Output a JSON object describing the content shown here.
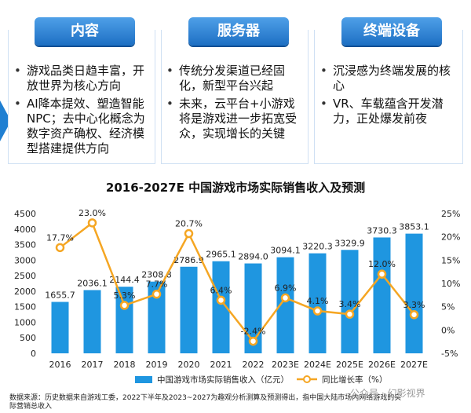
{
  "panels": [
    {
      "title": "内容",
      "bullets": [
        "游戏品类日趋丰富，开放世界为核心方向",
        "AI降本提效、塑造智能NPC；去中心化概念为数字资产确权、经济模型搭建提供方向"
      ]
    },
    {
      "title": "服务器",
      "bullets": [
        "传统分发渠道已经固化，新型平台兴起",
        "未来，云平台+小游戏将是游戏进一步拓宽受众，实现增长的关键"
      ]
    },
    {
      "title": "终端设备",
      "bullets": [
        "沉浸感为终端发展的核心",
        "VR、车载蕴含开发潜力，正处爆发前夜"
      ]
    }
  ],
  "footnote": "数据来源：历史数据来自游戏工委，2022下半年及2023~2027为趣观分析测算及预测得出，指中国大陆市场内网络游戏的实际营销总收入",
  "watermark": "公众号 · 幻影视界",
  "colors": {
    "bar": "#1f96e0",
    "line": "#f5a623",
    "panel_title": "#1d6fc3",
    "arrow": "#1f7fd2"
  },
  "chart_data": {
    "type": "bar",
    "title": "2016-2027E 中国游戏市场实际销售收入及预测",
    "categories": [
      "2016",
      "2017",
      "2018",
      "2019",
      "2020",
      "2021",
      "2022",
      "2023E",
      "2024E",
      "2025E",
      "2026E",
      "2027E"
    ],
    "series": [
      {
        "name": "中国游戏市场实际销售收入（亿元）",
        "type": "bar",
        "values": [
          1655.7,
          2036.1,
          2144.4,
          2308.8,
          2786.9,
          2965.1,
          2894.0,
          3094.1,
          3220.3,
          3329.9,
          3730.3,
          3853.1
        ],
        "labels": [
          "1655.7",
          "2036.1",
          "2144.4",
          "2308.8",
          "2786.9",
          "2965.1",
          "2894.0",
          "3094.1",
          "3220.3",
          "3329.9",
          "3730.3",
          "3853.1"
        ]
      },
      {
        "name": "同比增长率（%）",
        "type": "line",
        "axis": "right",
        "values": [
          17.7,
          23.0,
          5.3,
          7.7,
          20.7,
          6.4,
          -2.4,
          6.9,
          4.1,
          3.4,
          12.0,
          3.3
        ],
        "labels": [
          "17.7%",
          "23.0%",
          "5.3%",
          "7.7%",
          "20.7%",
          "6.4%",
          "-2.4%",
          "6.9%",
          "4.1%",
          "3.4%",
          "12.0%",
          "3.3%"
        ]
      }
    ],
    "y_left": {
      "lim": [
        0,
        4500
      ],
      "ticks": [
        "0",
        "500",
        "1000",
        "1500",
        "2000",
        "2500",
        "3000",
        "3500",
        "4000",
        "4500"
      ]
    },
    "y_right": {
      "lim": [
        -5,
        25
      ],
      "ticks": [
        "-5%",
        "0%",
        "5%",
        "10%",
        "15%",
        "20%",
        "25%"
      ]
    },
    "grid": false,
    "legend_position": "bottom"
  }
}
